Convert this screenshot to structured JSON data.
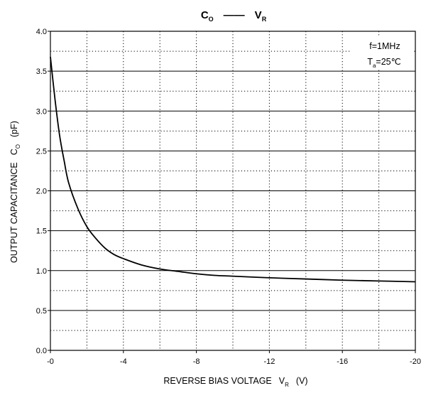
{
  "chart_data": {
    "type": "line",
    "title": {
      "y_sym": "C",
      "y_sub": "O",
      "dash": "——",
      "x_sym": "V",
      "x_sub": "R"
    },
    "xlabel": {
      "text": "REVERSE BIAS VOLTAGE",
      "sym": "V",
      "sub": "R",
      "unit": "(V)"
    },
    "ylabel": {
      "text": "OUTPUT CAPACITANCE",
      "sym": "C",
      "sub": "O",
      "unit": "(pF)"
    },
    "xlim": [
      0,
      -20
    ],
    "ylim": [
      0,
      4.0
    ],
    "x_ticks": [
      {
        "value": 0,
        "label": "-0"
      },
      {
        "value": -4,
        "label": "-4"
      },
      {
        "value": -8,
        "label": "-8"
      },
      {
        "value": -12,
        "label": "-12"
      },
      {
        "value": -16,
        "label": "-16"
      },
      {
        "value": -20,
        "label": "-20"
      }
    ],
    "y_ticks": [
      {
        "value": 0.0,
        "label": "0.0"
      },
      {
        "value": 0.5,
        "label": "0.5"
      },
      {
        "value": 1.0,
        "label": "1.0"
      },
      {
        "value": 1.5,
        "label": "1.5"
      },
      {
        "value": 2.0,
        "label": "2.0"
      },
      {
        "value": 2.5,
        "label": "2.5"
      },
      {
        "value": 3.0,
        "label": "3.0"
      },
      {
        "value": 3.5,
        "label": "3.5"
      },
      {
        "value": 4.0,
        "label": "4.0"
      }
    ],
    "grid": {
      "major": "solid",
      "minor": "dotted",
      "x_minor_step": 2,
      "y_minor_step": 0.25
    },
    "annotation": {
      "line1": "f=1MHz",
      "line2_sym": "T",
      "line2_sub": "a",
      "line2_val": "=25℃",
      "position": "top-right"
    },
    "series": [
      {
        "color": "#000000",
        "x": [
          0,
          -0.25,
          -0.5,
          -0.75,
          -1,
          -1.5,
          -2,
          -2.5,
          -3,
          -3.5,
          -4,
          -5,
          -6,
          -7,
          -8,
          -9,
          -10,
          -12,
          -14,
          -16,
          -18,
          -20
        ],
        "y": [
          3.68,
          3.15,
          2.7,
          2.38,
          2.1,
          1.78,
          1.55,
          1.4,
          1.28,
          1.2,
          1.15,
          1.07,
          1.02,
          0.99,
          0.96,
          0.94,
          0.93,
          0.91,
          0.895,
          0.88,
          0.87,
          0.86
        ]
      }
    ]
  }
}
